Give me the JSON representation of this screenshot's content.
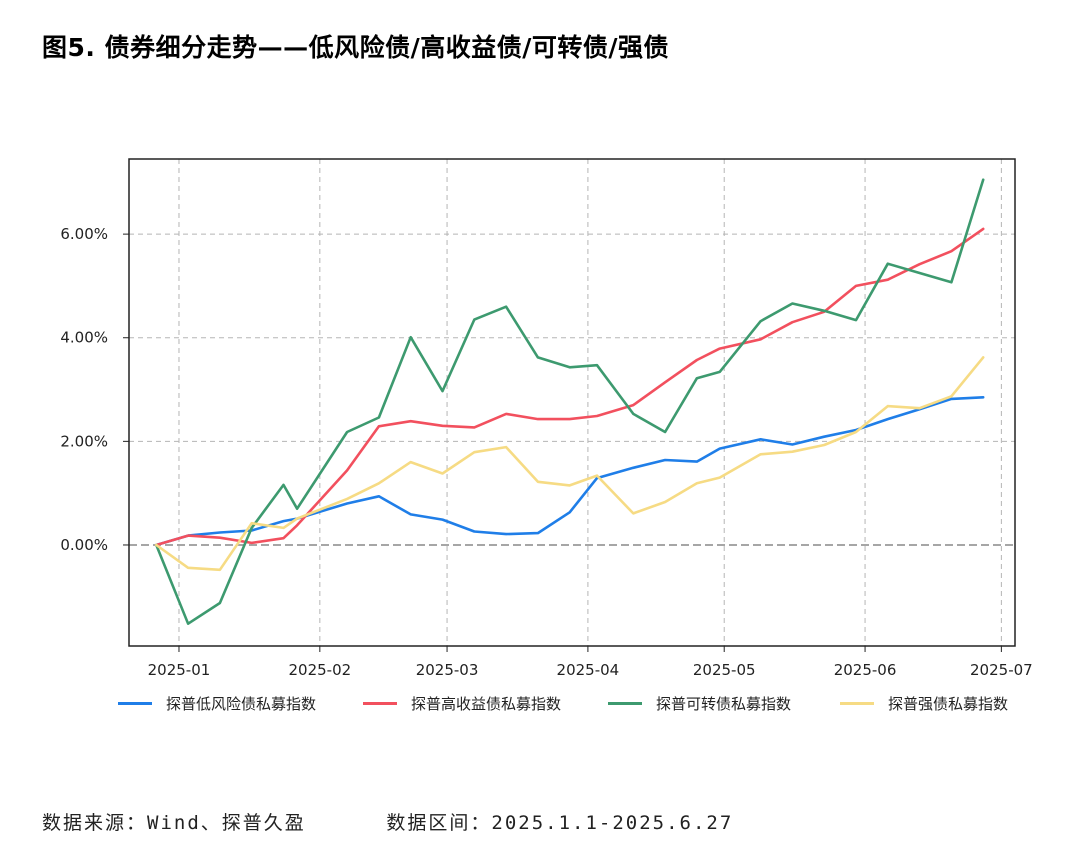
{
  "title": "图5. 债券细分走势——低风险债/高收益债/可转债/强债",
  "source_text": "数据来源：Wind、探普久盈",
  "range_text": "数据区间：2025.1.1-2025.6.27",
  "chart_data": {
    "type": "line",
    "title": "图5. 债券细分走势——低风险债/高收益债/可转债/强债",
    "xlabel": "",
    "ylabel": "",
    "x_ticks": [
      "2025-01",
      "2025-02",
      "2025-03",
      "2025-04",
      "2025-05",
      "2025-06",
      "2025-07"
    ],
    "x_tick_dates": [
      "2025-01-01",
      "2025-02-01",
      "2025-03-01",
      "2025-04-01",
      "2025-05-01",
      "2025-06-01",
      "2025-07-01"
    ],
    "y_ticks": [
      "0.00%",
      "2.00%",
      "4.00%",
      "6.00%"
    ],
    "y_tick_values": [
      0,
      2,
      4,
      6
    ],
    "xlim": [
      "2024-12-21",
      "2025-07-04"
    ],
    "ylim": [
      -1.95,
      7.45
    ],
    "grid": true,
    "legend_position": "bottom",
    "x": [
      "2024-12-27",
      "2025-01-03",
      "2025-01-10",
      "2025-01-17",
      "2025-01-24",
      "2025-01-27",
      "2025-02-07",
      "2025-02-14",
      "2025-02-21",
      "2025-02-28",
      "2025-03-07",
      "2025-03-14",
      "2025-03-21",
      "2025-03-28",
      "2025-04-03",
      "2025-04-11",
      "2025-04-18",
      "2025-04-25",
      "2025-04-30",
      "2025-05-09",
      "2025-05-16",
      "2025-05-23",
      "2025-05-30",
      "2025-06-06",
      "2025-06-13",
      "2025-06-20",
      "2025-06-27"
    ],
    "series": [
      {
        "name": "探普低风险债私募指数",
        "color": "#1f7ee8",
        "values": [
          0.0,
          0.18,
          0.24,
          0.28,
          0.46,
          0.51,
          0.8,
          0.94,
          0.59,
          0.49,
          0.26,
          0.21,
          0.23,
          0.63,
          1.29,
          1.49,
          1.64,
          1.61,
          1.86,
          2.04,
          1.94,
          2.09,
          2.22,
          2.43,
          2.62,
          2.82,
          2.85
        ]
      },
      {
        "name": "探普高收益债私募指数",
        "color": "#f2505e",
        "values": [
          0.0,
          0.18,
          0.14,
          0.04,
          0.13,
          0.38,
          1.44,
          2.29,
          2.39,
          2.3,
          2.27,
          2.53,
          2.43,
          2.43,
          2.49,
          2.7,
          3.14,
          3.57,
          3.79,
          3.97,
          4.3,
          4.5,
          5.0,
          5.12,
          5.42,
          5.67,
          6.1
        ]
      },
      {
        "name": "探普可转债私募指数",
        "color": "#3d9a6f",
        "values": [
          0.0,
          -1.52,
          -1.12,
          0.33,
          1.16,
          0.7,
          2.18,
          2.46,
          4.01,
          2.97,
          4.35,
          4.6,
          3.62,
          3.43,
          3.47,
          2.53,
          2.18,
          3.22,
          3.34,
          4.32,
          4.66,
          4.52,
          4.34,
          5.43,
          5.25,
          5.07,
          7.05
        ]
      },
      {
        "name": "探普强债私募指数",
        "color": "#f6db84",
        "values": [
          0.0,
          -0.44,
          -0.48,
          0.42,
          0.33,
          0.51,
          0.89,
          1.19,
          1.6,
          1.38,
          1.79,
          1.89,
          1.22,
          1.15,
          1.34,
          0.61,
          0.83,
          1.19,
          1.3,
          1.75,
          1.8,
          1.93,
          2.18,
          2.68,
          2.64,
          2.87,
          3.62
        ]
      }
    ]
  }
}
